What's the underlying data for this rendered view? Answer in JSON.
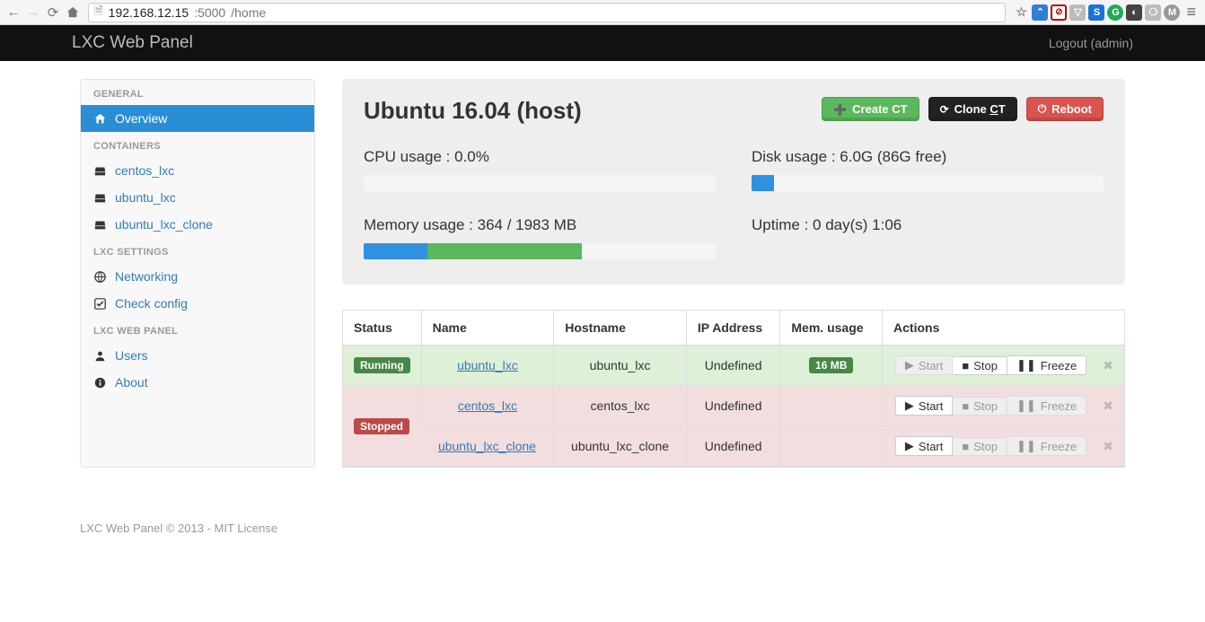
{
  "browser": {
    "url_host": "192.168.12.15",
    "url_port": ":5000",
    "url_path": "/home"
  },
  "topbar": {
    "brand": "LXC Web Panel",
    "logout": "Logout (admin)"
  },
  "sidebar": {
    "sections": [
      {
        "title": "GENERAL",
        "items": [
          {
            "label": "Overview",
            "icon": "home",
            "active": true
          }
        ]
      },
      {
        "title": "CONTAINERS",
        "items": [
          {
            "label": "centos_lxc",
            "icon": "hdd"
          },
          {
            "label": "ubuntu_lxc",
            "icon": "hdd"
          },
          {
            "label": "ubuntu_lxc_clone",
            "icon": "hdd"
          }
        ]
      },
      {
        "title": "LXC SETTINGS",
        "items": [
          {
            "label": "Networking",
            "icon": "globe"
          },
          {
            "label": "Check config",
            "icon": "check"
          }
        ]
      },
      {
        "title": "LXC WEB PANEL",
        "items": [
          {
            "label": "Users",
            "icon": "user"
          },
          {
            "label": "About",
            "icon": "info"
          }
        ]
      }
    ]
  },
  "host": {
    "title": "Ubuntu 16.04 (host)",
    "buttons": {
      "create": "Create CT",
      "clone": "Clone CT",
      "reboot": "Reboot"
    },
    "cpu": {
      "label": "CPU usage : ",
      "value": "0.0%",
      "pct": 0
    },
    "disk": {
      "label": "Disk usage : ",
      "value": "6.0G (86G free)",
      "pct": 6.5
    },
    "mem": {
      "label": "Memory usage : ",
      "value": "364 / 1983 MB",
      "pct_blue": 18,
      "pct_green": 44
    },
    "uptime": {
      "label": "Uptime : ",
      "value": "0 day(s) 1:06"
    }
  },
  "table": {
    "headers": {
      "status": "Status",
      "name": "Name",
      "host": "Hostname",
      "ip": "IP Address",
      "mem": "Mem. usage",
      "actions": "Actions"
    },
    "action_labels": {
      "start": "Start",
      "stop": "Stop",
      "freeze": "Freeze"
    },
    "rows": [
      {
        "state": "running",
        "status": "Running",
        "name": "ubuntu_lxc",
        "host": "ubuntu_lxc",
        "ip": "Undefined",
        "mem": "16 MB",
        "start_disabled": true,
        "stop_disabled": false,
        "freeze_disabled": false
      },
      {
        "state": "stopped",
        "status": "Stopped",
        "name": "centos_lxc",
        "host": "centos_lxc",
        "ip": "Undefined",
        "mem": "",
        "start_disabled": false,
        "stop_disabled": true,
        "freeze_disabled": true,
        "status_rowspan": 2
      },
      {
        "state": "stopped",
        "status": "",
        "name": "ubuntu_lxc_clone",
        "host": "ubuntu_lxc_clone",
        "ip": "Undefined",
        "mem": "",
        "start_disabled": false,
        "stop_disabled": true,
        "freeze_disabled": true,
        "no_status_cell": true
      }
    ]
  },
  "footer": "LXC Web Panel © 2013 - MIT License",
  "colors": {
    "blue": "#2f91e0",
    "green": "#5cb85c",
    "red": "#d9534f",
    "dark": "#111",
    "link": "#337ab7",
    "row_green": "#dff0d8",
    "row_red": "#f2dede"
  }
}
